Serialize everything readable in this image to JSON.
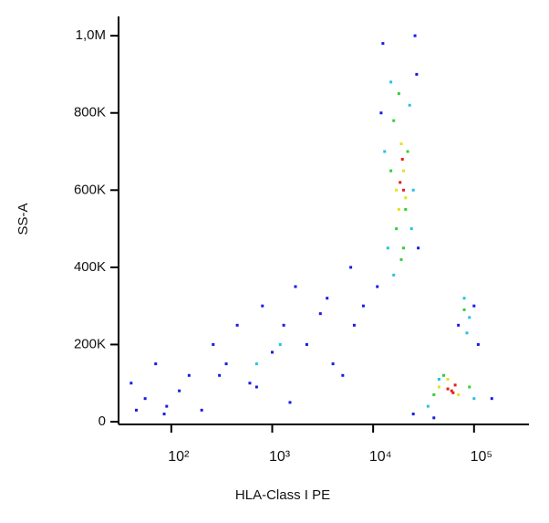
{
  "chart_data": {
    "type": "scatter",
    "x_label": "HLA-Class I PE",
    "y_label": "SS-A",
    "x_scale": "log",
    "xlim": [
      30,
      350000
    ],
    "xticks": [
      {
        "value": 100,
        "label": "10²"
      },
      {
        "value": 1000,
        "label": "10³"
      },
      {
        "value": 10000,
        "label": "10⁴"
      },
      {
        "value": 100000,
        "label": "10⁵"
      }
    ],
    "ylim": [
      -7000,
      1050000
    ],
    "yticks": [
      0,
      {
        "value": 200000,
        "label": "200K"
      },
      {
        "value": 400000,
        "label": "400K"
      },
      {
        "value": 600000,
        "label": "600K"
      },
      {
        "value": 800000,
        "label": "800K"
      },
      {
        "value": 1000000,
        "label": "1,0M"
      }
    ],
    "series": [
      {
        "color": "#1a1ae6",
        "x": [
          40,
          55,
          70,
          90,
          120,
          150,
          200,
          260,
          350,
          450,
          600,
          800,
          1000,
          1300,
          1700,
          2200,
          3000,
          4000,
          5000,
          6500,
          8000,
          45,
          85,
          300,
          700,
          1500,
          3500,
          6000,
          11000,
          12000,
          28000,
          27000,
          12500,
          26000,
          70000,
          100000,
          110000,
          25000,
          150000,
          40000
        ],
        "values": [
          100000,
          60000,
          150000,
          40000,
          80000,
          120000,
          30000,
          200000,
          150000,
          250000,
          100000,
          300000,
          180000,
          250000,
          350000,
          200000,
          280000,
          150000,
          120000,
          250000,
          300000,
          30000,
          20000,
          120000,
          90000,
          50000,
          320000,
          400000,
          350000,
          800000,
          450000,
          900000,
          980000,
          1000000,
          250000,
          300000,
          200000,
          20000,
          60000,
          10000
        ]
      },
      {
        "color": "#22c4e0",
        "x": [
          13000,
          25000,
          14000,
          24000,
          15000,
          23000,
          80000,
          90000,
          85000,
          35000,
          45000,
          100000,
          1200,
          700,
          16000
        ],
        "values": [
          700000,
          600000,
          450000,
          500000,
          880000,
          820000,
          320000,
          270000,
          230000,
          40000,
          110000,
          60000,
          200000,
          150000,
          380000
        ]
      },
      {
        "color": "#33d033",
        "x": [
          15000,
          22000,
          17000,
          21000,
          16000,
          19000,
          80000,
          40000,
          50000,
          90000,
          18000,
          20000
        ],
        "values": [
          650000,
          700000,
          500000,
          550000,
          780000,
          420000,
          290000,
          70000,
          120000,
          90000,
          850000,
          450000
        ]
      },
      {
        "color": "#e6e020",
        "x": [
          17000,
          20000,
          19000,
          18000,
          45000,
          55000,
          70000,
          21000
        ],
        "values": [
          600000,
          650000,
          720000,
          550000,
          90000,
          110000,
          70000,
          580000
        ]
      },
      {
        "color": "#e02020",
        "x": [
          18500,
          19500,
          20000,
          55000,
          60000,
          65000,
          62000
        ],
        "values": [
          620000,
          680000,
          600000,
          85000,
          80000,
          95000,
          75000
        ]
      }
    ]
  }
}
